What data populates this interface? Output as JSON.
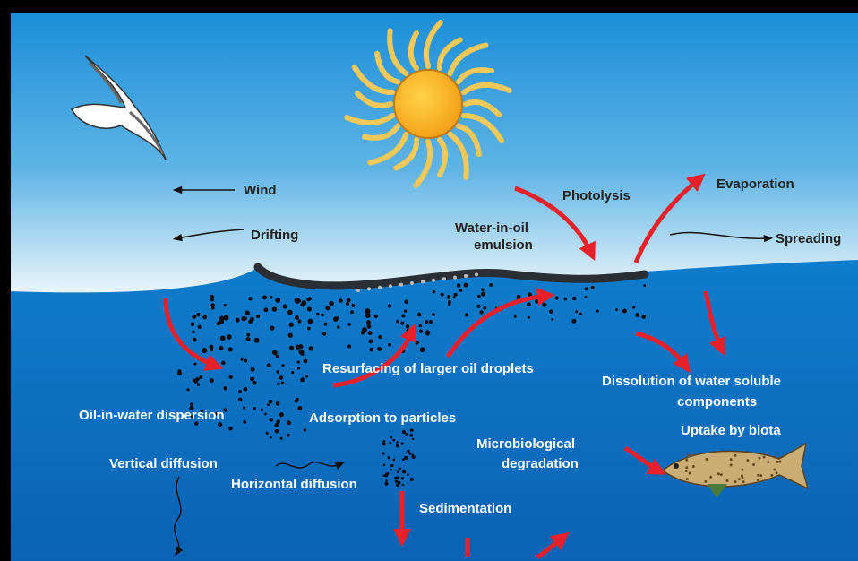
{
  "labels": {
    "wind": "Wind",
    "drifting": "Drifting",
    "photolysis": "Photolysis",
    "evaporation": "Evaporation",
    "water_in_oil_emulsion": [
      "Water-in-oil",
      "emulsion"
    ],
    "spreading": "Spreading",
    "resurfacing": "Resurfacing of larger oil droplets",
    "dissolution": [
      "Dissolution of water soluble",
      "components"
    ],
    "oil_in_water_dispersion": "Oil-in-water dispersion",
    "adsorption": "Adsorption to particles",
    "uptake": "Uptake by biota",
    "microbiological_degradation": [
      "Microbiological",
      "degradation"
    ],
    "vertical_diffusion": "Vertical diffusion",
    "horizontal_diffusion": "Horizontal diffusion",
    "sedimentation": "Sedimentation"
  }
}
